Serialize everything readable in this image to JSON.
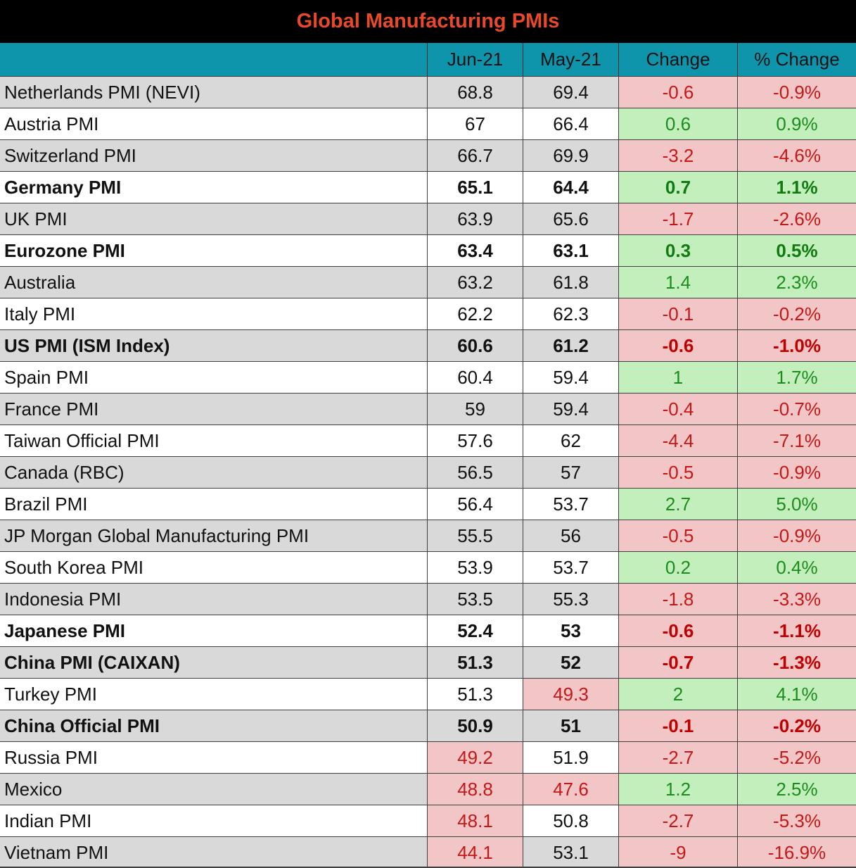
{
  "chart_data": {
    "type": "table",
    "title": "Global Manufacturing PMIs",
    "columns": [
      "",
      "Jun-21",
      "May-21",
      "Change",
      "% Change"
    ],
    "colors": {
      "title_bg": "#000000",
      "title_text": "#e8492a",
      "header_bg": "#0e95ac",
      "row_shade": "#d9d9d9",
      "negative_bg": "#f2c6c6",
      "negative_text": "#c41818",
      "positive_bg": "#c3efbd",
      "positive_text": "#1c8c1c"
    },
    "rows": [
      {
        "name": "Netherlands PMI (NEVI)",
        "jun": "68.8",
        "may": "69.4",
        "change": "-0.6",
        "pct": "-0.9%",
        "bold": false,
        "shaded": true
      },
      {
        "name": "Austria PMI",
        "jun": "67",
        "may": "66.4",
        "change": "0.6",
        "pct": "0.9%",
        "bold": false,
        "shaded": false
      },
      {
        "name": "Switzerland PMI",
        "jun": "66.7",
        "may": "69.9",
        "change": "-3.2",
        "pct": "-4.6%",
        "bold": false,
        "shaded": true
      },
      {
        "name": "Germany PMI",
        "jun": "65.1",
        "may": "64.4",
        "change": "0.7",
        "pct": "1.1%",
        "bold": true,
        "shaded": false
      },
      {
        "name": "UK PMI",
        "jun": "63.9",
        "may": "65.6",
        "change": "-1.7",
        "pct": "-2.6%",
        "bold": false,
        "shaded": true
      },
      {
        "name": "Eurozone PMI",
        "jun": "63.4",
        "may": "63.1",
        "change": "0.3",
        "pct": "0.5%",
        "bold": true,
        "shaded": false
      },
      {
        "name": "Australia",
        "jun": "63.2",
        "may": "61.8",
        "change": "1.4",
        "pct": "2.3%",
        "bold": false,
        "shaded": true
      },
      {
        "name": "Italy PMI",
        "jun": "62.2",
        "may": "62.3",
        "change": "-0.1",
        "pct": "-0.2%",
        "bold": false,
        "shaded": false
      },
      {
        "name": "US PMI (ISM Index)",
        "jun": "60.6",
        "may": "61.2",
        "change": "-0.6",
        "pct": "-1.0%",
        "bold": true,
        "shaded": true
      },
      {
        "name": "Spain PMI",
        "jun": "60.4",
        "may": "59.4",
        "change": "1",
        "pct": "1.7%",
        "bold": false,
        "shaded": false
      },
      {
        "name": "France PMI",
        "jun": "59",
        "may": "59.4",
        "change": "-0.4",
        "pct": "-0.7%",
        "bold": false,
        "shaded": true
      },
      {
        "name": "Taiwan Official PMI",
        "jun": "57.6",
        "may": "62",
        "change": "-4.4",
        "pct": "-7.1%",
        "bold": false,
        "shaded": false
      },
      {
        "name": "Canada (RBC)",
        "jun": "56.5",
        "may": "57",
        "change": "-0.5",
        "pct": "-0.9%",
        "bold": false,
        "shaded": true
      },
      {
        "name": "Brazil PMI",
        "jun": "56.4",
        "may": "53.7",
        "change": "2.7",
        "pct": "5.0%",
        "bold": false,
        "shaded": false
      },
      {
        "name": "JP Morgan Global Manufacturing PMI",
        "jun": "55.5",
        "may": "56",
        "change": "-0.5",
        "pct": "-0.9%",
        "bold": false,
        "shaded": true
      },
      {
        "name": "South Korea PMI",
        "jun": "53.9",
        "may": "53.7",
        "change": "0.2",
        "pct": "0.4%",
        "bold": false,
        "shaded": false
      },
      {
        "name": "Indonesia PMI",
        "jun": "53.5",
        "may": "55.3",
        "change": "-1.8",
        "pct": "-3.3%",
        "bold": false,
        "shaded": true
      },
      {
        "name": "Japanese PMI",
        "jun": "52.4",
        "may": "53",
        "change": "-0.6",
        "pct": "-1.1%",
        "bold": true,
        "shaded": false
      },
      {
        "name": "China PMI (CAIXAN)",
        "jun": "51.3",
        "may": "52",
        "change": "-0.7",
        "pct": "-1.3%",
        "bold": true,
        "shaded": true
      },
      {
        "name": "Turkey PMI",
        "jun": "51.3",
        "may": "49.3",
        "change": "2",
        "pct": "4.1%",
        "bold": false,
        "shaded": false
      },
      {
        "name": "China Official PMI",
        "jun": "50.9",
        "may": "51",
        "change": "-0.1",
        "pct": "-0.2%",
        "bold": true,
        "shaded": true
      },
      {
        "name": "Russia PMI",
        "jun": "49.2",
        "may": "51.9",
        "change": "-2.7",
        "pct": "-5.2%",
        "bold": false,
        "shaded": false
      },
      {
        "name": "Mexico",
        "jun": "48.8",
        "may": "47.6",
        "change": "1.2",
        "pct": "2.5%",
        "bold": false,
        "shaded": true
      },
      {
        "name": "Indian PMI",
        "jun": "48.1",
        "may": "50.8",
        "change": "-2.7",
        "pct": "-5.3%",
        "bold": false,
        "shaded": false
      },
      {
        "name": "Vietnam PMI",
        "jun": "44.1",
        "may": "53.1",
        "change": "-9",
        "pct": "-16.9%",
        "bold": false,
        "shaded": true
      }
    ]
  }
}
